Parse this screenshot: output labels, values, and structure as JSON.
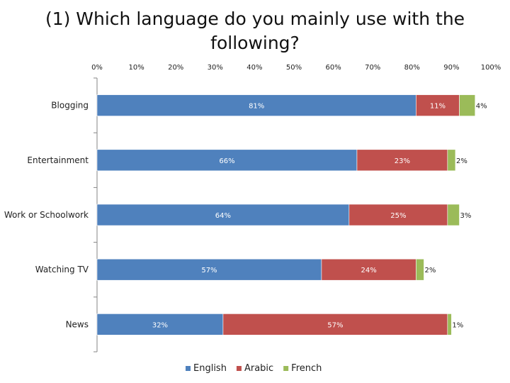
{
  "chart_data": {
    "type": "bar",
    "orientation": "horizontal",
    "stacked": true,
    "title": "(1) Which language do you mainly use with the following?",
    "xlabel": "",
    "ylabel": "",
    "xlim": [
      0,
      100
    ],
    "x_ticks": [
      "0%",
      "10%",
      "20%",
      "30%",
      "40%",
      "50%",
      "60%",
      "70%",
      "80%",
      "90%",
      "100%"
    ],
    "categories": [
      "Blogging",
      "Entertainment",
      "Work or Schoolwork",
      "Watching TV",
      "News"
    ],
    "series": [
      {
        "name": "English",
        "color": "#4F81BD",
        "values": [
          81,
          66,
          64,
          57,
          32
        ]
      },
      {
        "name": "Arabic",
        "color": "#C0504D",
        "values": [
          11,
          23,
          25,
          24,
          57
        ]
      },
      {
        "name": "French",
        "color": "#9BBB59",
        "values": [
          4,
          2,
          3,
          2,
          1
        ]
      }
    ],
    "data_labels": [
      [
        "81%",
        "11%",
        "4%"
      ],
      [
        "66%",
        "23%",
        "2%"
      ],
      [
        "64%",
        "25%",
        "3%"
      ],
      [
        "57%",
        "24%",
        "2%"
      ],
      [
        "32%",
        "57%",
        "1%"
      ]
    ],
    "grid": false,
    "legend_position": "bottom"
  }
}
